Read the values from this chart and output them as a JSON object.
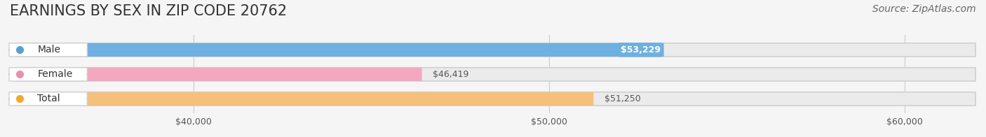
{
  "title": "EARNINGS BY SEX IN ZIP CODE 20762",
  "source": "Source: ZipAtlas.com",
  "categories": [
    "Male",
    "Female",
    "Total"
  ],
  "values": [
    53229,
    46419,
    51250
  ],
  "bar_colors": [
    "#6eb0e0",
    "#f4a8c0",
    "#f5c07a"
  ],
  "label_colors": [
    "#5a9fd4",
    "#e891ae",
    "#f0a830"
  ],
  "value_labels": [
    "$53,229",
    "$46,419",
    "$51,250"
  ],
  "male_label_inside": true,
  "xlim": [
    35000,
    62000
  ],
  "xticks": [
    40000,
    50000,
    60000
  ],
  "xtick_labels": [
    "$40,000",
    "$50,000",
    "$60,000"
  ],
  "background_color": "#f5f5f5",
  "bar_background_color": "#ebebeb",
  "title_fontsize": 15,
  "source_fontsize": 10,
  "bar_height": 0.55,
  "figsize": [
    14.06,
    1.96
  ],
  "dpi": 100
}
